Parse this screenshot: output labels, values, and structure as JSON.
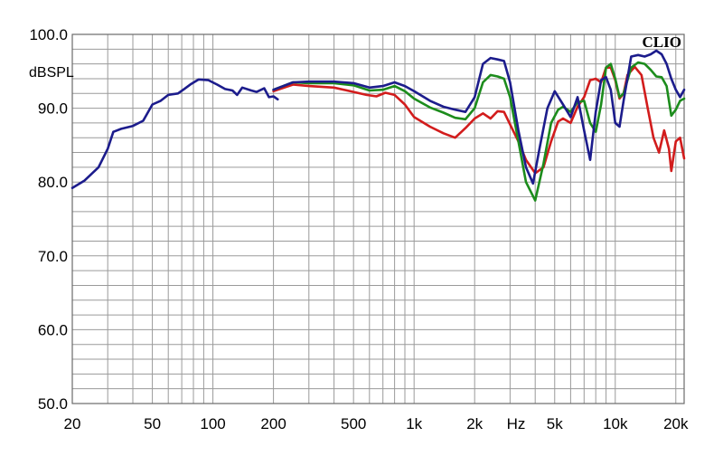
{
  "chart_data": {
    "type": "line",
    "title": "",
    "ylabel": "dBSPL",
    "xlabel": "Hz",
    "brand": "CLIO",
    "xscale": "log",
    "xlim": [
      20,
      22000
    ],
    "ylim": [
      50,
      100
    ],
    "grid": true,
    "legend": "none",
    "y_ticks": [
      {
        "value": 100,
        "label": "100.0"
      },
      {
        "value": 90,
        "label": "90.0"
      },
      {
        "value": 80,
        "label": "80.0"
      },
      {
        "value": 70,
        "label": "70.0"
      },
      {
        "value": 60,
        "label": "60.0"
      },
      {
        "value": 50,
        "label": "50.0"
      }
    ],
    "x_ticks": [
      {
        "value": 20,
        "label": "20"
      },
      {
        "value": 50,
        "label": "50"
      },
      {
        "value": 100,
        "label": "100"
      },
      {
        "value": 200,
        "label": "200"
      },
      {
        "value": 500,
        "label": "500"
      },
      {
        "value": 1000,
        "label": "1k"
      },
      {
        "value": 2000,
        "label": "2k"
      },
      {
        "value": 5000,
        "label": "5k"
      },
      {
        "value": 10000,
        "label": "10k"
      },
      {
        "value": 20000,
        "label": "20k"
      }
    ],
    "series": [
      {
        "color": "#1c1c8c",
        "points": [
          [
            20,
            79.2
          ],
          [
            23,
            80.2
          ],
          [
            27,
            82
          ],
          [
            30,
            84.5
          ],
          [
            32,
            86.8
          ],
          [
            35,
            87.2
          ],
          [
            40,
            87.6
          ],
          [
            45,
            88.3
          ],
          [
            50,
            90.5
          ],
          [
            55,
            91
          ],
          [
            60,
            91.8
          ],
          [
            67,
            92
          ],
          [
            72,
            92.6
          ],
          [
            78,
            93.3
          ],
          [
            85,
            93.9
          ],
          [
            95,
            93.8
          ],
          [
            105,
            93.2
          ],
          [
            115,
            92.6
          ],
          [
            125,
            92.4
          ],
          [
            132,
            91.8
          ],
          [
            140,
            92.8
          ],
          [
            155,
            92.4
          ],
          [
            165,
            92.2
          ],
          [
            180,
            92.7
          ],
          [
            190,
            91.5
          ],
          [
            200,
            91.6
          ],
          [
            210,
            91.2
          ]
        ]
      },
      {
        "color": "#d21c1c",
        "points": [
          [
            200,
            92.3
          ],
          [
            250,
            93.2
          ],
          [
            300,
            93
          ],
          [
            400,
            92.8
          ],
          [
            500,
            92.2
          ],
          [
            580,
            91.8
          ],
          [
            650,
            91.6
          ],
          [
            720,
            92.1
          ],
          [
            800,
            91.8
          ],
          [
            900,
            90.5
          ],
          [
            1000,
            88.8
          ],
          [
            1200,
            87.5
          ],
          [
            1400,
            86.6
          ],
          [
            1600,
            86
          ],
          [
            1800,
            87.3
          ],
          [
            2000,
            88.6
          ],
          [
            2200,
            89.3
          ],
          [
            2400,
            88.6
          ],
          [
            2600,
            89.6
          ],
          [
            2800,
            89.5
          ],
          [
            3000,
            87.8
          ],
          [
            3300,
            85.5
          ],
          [
            3600,
            83
          ],
          [
            4000,
            81.2
          ],
          [
            4400,
            82
          ],
          [
            4800,
            85.5
          ],
          [
            5200,
            88.2
          ],
          [
            5500,
            88.6
          ],
          [
            6000,
            88
          ],
          [
            6500,
            90.2
          ],
          [
            7000,
            91.5
          ],
          [
            7500,
            93.8
          ],
          [
            8000,
            94
          ],
          [
            8500,
            93.5
          ],
          [
            9000,
            95.5
          ],
          [
            9500,
            95.5
          ],
          [
            10000,
            93.8
          ],
          [
            10500,
            91.3
          ],
          [
            11000,
            92
          ],
          [
            11500,
            94.5
          ],
          [
            12500,
            95.6
          ],
          [
            13500,
            94.5
          ],
          [
            14500,
            90
          ],
          [
            15500,
            86
          ],
          [
            16500,
            84
          ],
          [
            17500,
            87
          ],
          [
            18500,
            84.5
          ],
          [
            19000,
            81.5
          ],
          [
            19500,
            83.5
          ],
          [
            20000,
            85.5
          ],
          [
            21000,
            86
          ],
          [
            22000,
            83.2
          ]
        ]
      },
      {
        "color": "#1c8c1c",
        "points": [
          [
            200,
            92.5
          ],
          [
            250,
            93.5
          ],
          [
            300,
            93.4
          ],
          [
            400,
            93.4
          ],
          [
            500,
            93.1
          ],
          [
            600,
            92.4
          ],
          [
            700,
            92.5
          ],
          [
            800,
            93
          ],
          [
            900,
            92.3
          ],
          [
            1000,
            91.3
          ],
          [
            1200,
            90.1
          ],
          [
            1400,
            89.4
          ],
          [
            1600,
            88.7
          ],
          [
            1800,
            88.5
          ],
          [
            2000,
            90
          ],
          [
            2200,
            93.5
          ],
          [
            2400,
            94.5
          ],
          [
            2600,
            94.3
          ],
          [
            2800,
            94
          ],
          [
            3000,
            91.5
          ],
          [
            3300,
            85.5
          ],
          [
            3600,
            80
          ],
          [
            4000,
            77.5
          ],
          [
            4400,
            82.5
          ],
          [
            4800,
            88
          ],
          [
            5200,
            89.8
          ],
          [
            5500,
            90.2
          ],
          [
            6000,
            89.5
          ],
          [
            6500,
            90.8
          ],
          [
            7000,
            91
          ],
          [
            7500,
            88
          ],
          [
            8000,
            86.8
          ],
          [
            8500,
            90.5
          ],
          [
            9000,
            95.5
          ],
          [
            9500,
            96
          ],
          [
            10000,
            94
          ],
          [
            10500,
            91.5
          ],
          [
            11000,
            92
          ],
          [
            12000,
            95.5
          ],
          [
            13000,
            96.2
          ],
          [
            14000,
            96
          ],
          [
            15000,
            95.2
          ],
          [
            16000,
            94.3
          ],
          [
            17000,
            94.2
          ],
          [
            18000,
            93
          ],
          [
            19000,
            89
          ],
          [
            20000,
            89.8
          ],
          [
            21000,
            91
          ],
          [
            22000,
            91.3
          ]
        ]
      },
      {
        "color": "#1c1c8c",
        "points": [
          [
            200,
            92.5
          ],
          [
            250,
            93.5
          ],
          [
            300,
            93.6
          ],
          [
            400,
            93.6
          ],
          [
            500,
            93.4
          ],
          [
            600,
            92.8
          ],
          [
            700,
            93
          ],
          [
            800,
            93.5
          ],
          [
            900,
            93
          ],
          [
            1000,
            92.3
          ],
          [
            1200,
            91
          ],
          [
            1400,
            90.2
          ],
          [
            1600,
            89.8
          ],
          [
            1800,
            89.5
          ],
          [
            2000,
            91.5
          ],
          [
            2200,
            96
          ],
          [
            2400,
            96.8
          ],
          [
            2600,
            96.6
          ],
          [
            2800,
            96.4
          ],
          [
            3000,
            93.5
          ],
          [
            3300,
            87
          ],
          [
            3600,
            82
          ],
          [
            3900,
            79.8
          ],
          [
            4200,
            84.5
          ],
          [
            4600,
            90
          ],
          [
            5000,
            92.3
          ],
          [
            5500,
            90.5
          ],
          [
            6000,
            88.8
          ],
          [
            6500,
            91.5
          ],
          [
            7000,
            87
          ],
          [
            7500,
            83
          ],
          [
            8000,
            89.5
          ],
          [
            8500,
            93.8
          ],
          [
            9000,
            94.2
          ],
          [
            9500,
            92.5
          ],
          [
            10000,
            88
          ],
          [
            10500,
            87.5
          ],
          [
            11000,
            91
          ],
          [
            12000,
            97
          ],
          [
            13000,
            97.2
          ],
          [
            14000,
            97
          ],
          [
            15000,
            97.3
          ],
          [
            16000,
            97.8
          ],
          [
            17000,
            97.3
          ],
          [
            18000,
            96
          ],
          [
            19000,
            94
          ],
          [
            20000,
            92.5
          ],
          [
            21000,
            91.5
          ],
          [
            22000,
            92.5
          ]
        ]
      }
    ]
  }
}
